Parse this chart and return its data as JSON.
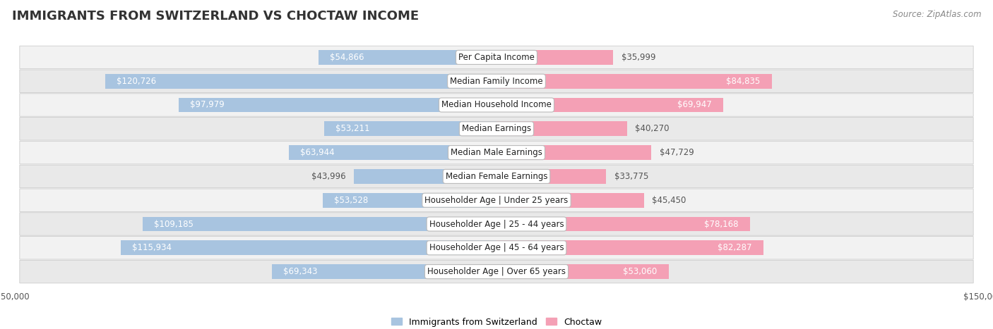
{
  "title": "IMMIGRANTS FROM SWITZERLAND VS CHOCTAW INCOME",
  "source": "Source: ZipAtlas.com",
  "categories": [
    "Per Capita Income",
    "Median Family Income",
    "Median Household Income",
    "Median Earnings",
    "Median Male Earnings",
    "Median Female Earnings",
    "Householder Age | Under 25 years",
    "Householder Age | 25 - 44 years",
    "Householder Age | 45 - 64 years",
    "Householder Age | Over 65 years"
  ],
  "switzerland_values": [
    54866,
    120726,
    97979,
    53211,
    63944,
    43996,
    53528,
    109185,
    115934,
    69343
  ],
  "choctaw_values": [
    35999,
    84835,
    69947,
    40270,
    47729,
    33775,
    45450,
    78168,
    82287,
    53060
  ],
  "switzerland_labels": [
    "$54,866",
    "$120,726",
    "$97,979",
    "$53,211",
    "$63,944",
    "$43,996",
    "$53,528",
    "$109,185",
    "$115,934",
    "$69,343"
  ],
  "choctaw_labels": [
    "$35,999",
    "$84,835",
    "$69,947",
    "$40,270",
    "$47,729",
    "$33,775",
    "$45,450",
    "$78,168",
    "$82,287",
    "$53,060"
  ],
  "switzerland_color": "#a8c4e0",
  "choctaw_color": "#f4a0b5",
  "max_value": 150000,
  "background_color": "#ffffff",
  "row_bg_even": "#f0f0f0",
  "row_bg_odd": "#e8e8e8",
  "title_fontsize": 13,
  "label_fontsize": 8.5,
  "category_fontsize": 8.5,
  "legend_fontsize": 9,
  "source_fontsize": 8.5,
  "inside_threshold": 50000
}
